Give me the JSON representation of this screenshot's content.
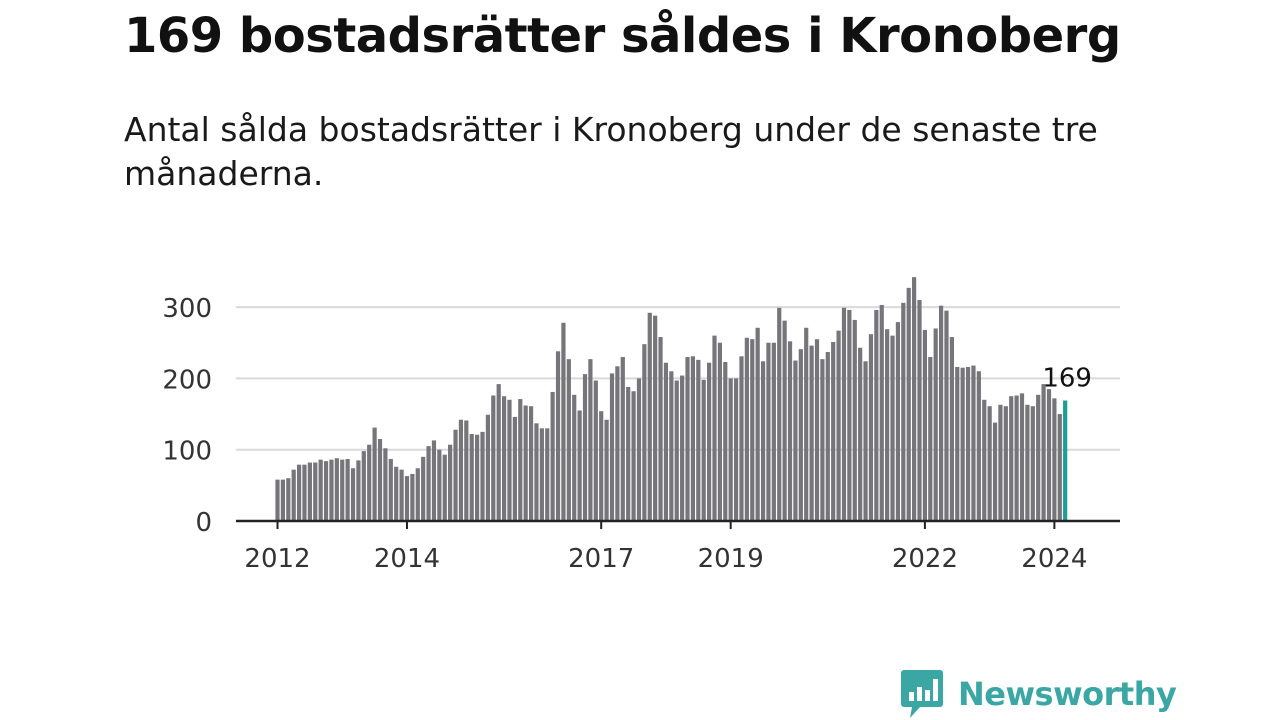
{
  "header": {
    "title": "169 bostadsrätter såldes i Kronoberg",
    "subtitle": "Antal sålda bostadsrätter i Kronoberg under de senaste tre månaderna."
  },
  "brand": {
    "name": "Newsworthy",
    "color": "#3aa7a4"
  },
  "colors": {
    "bar": "#75757a",
    "highlight": "#1a9e9a",
    "grid": "#d9d9d9",
    "axis": "#222222"
  },
  "chart_data": {
    "type": "bar",
    "x_start": "2012-01",
    "yticks": [
      0,
      100,
      200,
      300
    ],
    "ylim": [
      0,
      345
    ],
    "xticks": [
      "2012",
      "2014",
      "2017",
      "2019",
      "2022",
      "2024"
    ],
    "highlight_label": "169",
    "values": [
      58,
      58,
      60,
      72,
      79,
      79,
      82,
      82,
      86,
      84,
      86,
      88,
      86,
      87,
      74,
      85,
      98,
      107,
      131,
      115,
      102,
      87,
      76,
      72,
      63,
      66,
      74,
      90,
      105,
      113,
      100,
      93,
      107,
      128,
      142,
      141,
      122,
      121,
      125,
      149,
      176,
      192,
      175,
      170,
      146,
      171,
      162,
      161,
      137,
      130,
      130,
      181,
      238,
      278,
      227,
      177,
      155,
      206,
      227,
      197,
      154,
      142,
      207,
      217,
      230,
      188,
      182,
      200,
      248,
      292,
      288,
      258,
      222,
      210,
      197,
      204,
      230,
      231,
      226,
      198,
      222,
      260,
      250,
      223,
      200,
      200,
      231,
      257,
      255,
      271,
      224,
      250,
      250,
      299,
      281,
      252,
      225,
      241,
      271,
      246,
      255,
      227,
      237,
      251,
      267,
      299,
      296,
      282,
      243,
      224,
      262,
      296,
      303,
      269,
      260,
      279,
      306,
      327,
      342,
      310,
      268,
      230,
      270,
      302,
      295,
      258,
      216,
      215,
      216,
      218,
      210,
      170,
      161,
      138,
      163,
      161,
      175,
      176,
      179,
      163,
      161,
      177,
      192,
      185,
      172,
      150,
      169
    ]
  }
}
